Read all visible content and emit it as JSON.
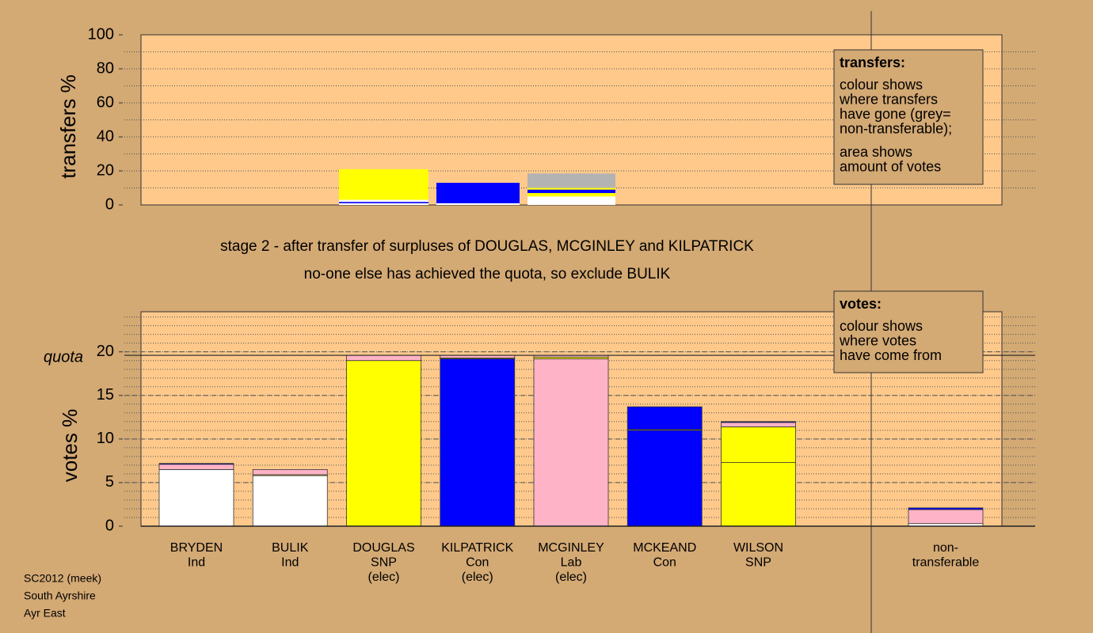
{
  "chart_data": [
    {
      "type": "bar",
      "y_label": "transfers %",
      "ylim": [
        0,
        100
      ],
      "yticks": [
        0,
        20,
        40,
        60,
        80,
        100
      ],
      "minor_grid_step": 10,
      "stacks": [
        {
          "values": [
            1,
            0.8,
            1.2,
            18
          ],
          "colors": [
            "#ffffff",
            "#0000ff",
            "#ffffff",
            "#ffff00"
          ]
        },
        {
          "values": [
            1,
            12
          ],
          "colors": [
            "#ffffff",
            "#0000ff"
          ]
        },
        {
          "values": [
            5,
            2,
            2,
            1,
            8.5
          ],
          "colors": [
            "#ffffff",
            "#ffff00",
            "#0000ff",
            "#ffff00",
            "#b3b3b3"
          ]
        }
      ]
    },
    {
      "type": "bar",
      "y_label": "votes %",
      "ylim": [
        0,
        24.6
      ],
      "yticks": [
        0,
        5,
        10,
        15,
        20
      ],
      "minor_grid_step": 1,
      "quota": 19.6,
      "quota_label": "quota",
      "categories": [
        [
          "BRYDEN",
          "Ind"
        ],
        [
          "BULIK",
          "Ind"
        ],
        [
          "DOUGLAS",
          "SNP",
          "(elec)"
        ],
        [
          "KILPATRICK",
          "Con",
          "(elec)"
        ],
        [
          "MCGINLEY",
          "Lab",
          "(elec)"
        ],
        [
          "MCKEAND",
          "Con"
        ],
        [
          "WILSON",
          "SNP"
        ],
        null,
        [
          "non-",
          "transferable"
        ]
      ],
      "stacks": [
        {
          "values": [
            6.5,
            0.6,
            0.1
          ],
          "colors": [
            "#ffffff",
            "#ffb3c6",
            "#0000ff"
          ]
        },
        {
          "values": [
            5.8,
            0.1,
            0.6
          ],
          "colors": [
            "#ffffff",
            "#ffff00",
            "#ffb3c6"
          ]
        },
        {
          "values": [
            19.0,
            0.6
          ],
          "colors": [
            "#ffff00",
            "#ffb3c6"
          ]
        },
        {
          "values": [
            19.2,
            0.1,
            0.3
          ],
          "colors": [
            "#0000ff",
            "#ffff00",
            "#ffb3c6"
          ]
        },
        {
          "values": [
            19.2,
            0.2,
            0.2
          ],
          "colors": [
            "#ffb3c6",
            "#ffff00",
            "#ffb3c6"
          ]
        },
        {
          "values": [
            11.0,
            0.1,
            2.6
          ],
          "colors": [
            "#0000ff",
            "#ffff00",
            "#0000ff"
          ]
        },
        {
          "values": [
            7.3,
            4.1,
            0.5,
            0.1
          ],
          "colors": [
            "#ffff00",
            "#ffff00",
            "#ffb3c6",
            "#0000ff"
          ]
        },
        null,
        {
          "values": [
            0.3,
            1.6,
            0.2
          ],
          "colors": [
            "#ffffff",
            "#ffb3c6",
            "#0000ff"
          ]
        }
      ]
    }
  ],
  "stage_text": [
    "stage 2 - after transfer of surpluses of DOUGLAS, MCGINLEY and KILPATRICK",
    "no-one else has achieved the quota, so exclude BULIK"
  ],
  "transfers_key": {
    "title": "transfers:",
    "lines": [
      "colour shows",
      "where transfers",
      "have gone (grey=",
      "non-transferable);",
      "area shows",
      "amount of votes"
    ]
  },
  "votes_key": {
    "title": "votes:",
    "lines": [
      "colour shows",
      "where votes",
      "have come from"
    ]
  },
  "footer": [
    "SC2012 (meek)",
    "South Ayrshire",
    "Ayr East"
  ]
}
